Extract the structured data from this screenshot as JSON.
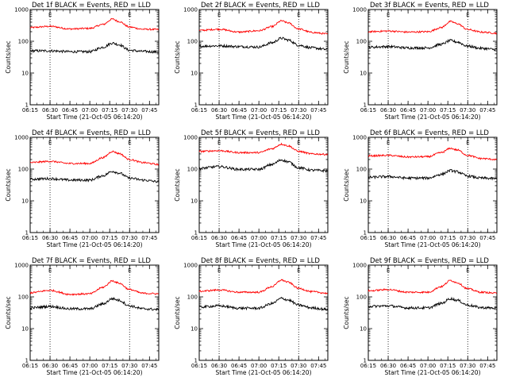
{
  "figure": {
    "time_axis": {
      "start": "06:15",
      "end": "07:52",
      "tick_labels": [
        "06:15",
        "06:30",
        "06:45",
        "07:00",
        "07:15",
        "07:30",
        "07:45"
      ],
      "xlabel": "Start Time (21-Oct-05 06:14:20)",
      "markers": [
        {
          "time": "06:30",
          "label": "E",
          "style": "dotted"
        },
        {
          "time": "07:30",
          "label": "E",
          "style": "dotted"
        }
      ]
    },
    "y_axis": {
      "ylabel": "Counts/sec",
      "scale": "log",
      "ylim": [
        1,
        1000
      ],
      "tick_labels": [
        "1",
        "10",
        "100",
        "1000"
      ]
    },
    "colors": {
      "events": "#000000",
      "lld": "#ff0000"
    }
  },
  "chart_data": [
    {
      "type": "line",
      "title": "Det 1f BLACK = Events, RED = LLD",
      "ylabel": "Counts/sec",
      "xlabel": "Start Time (21-Oct-05 06:14:20)",
      "yscale": "log",
      "ylim": [
        1,
        1000
      ],
      "x": [
        "06:15",
        "06:30",
        "06:45",
        "07:00",
        "07:10",
        "07:17",
        "07:22",
        "07:30",
        "07:40",
        "07:52"
      ],
      "series": [
        {
          "values": [
            270,
            295,
            245,
            255,
            340,
            500,
            420,
            280,
            240,
            235
          ],
          "color": "#ff0000"
        },
        {
          "values": [
            50,
            50,
            47,
            47,
            65,
            88,
            78,
            52,
            48,
            46
          ],
          "color": "#000000"
        }
      ]
    },
    {
      "type": "line",
      "title": "Det 2f BLACK = Events, RED = LLD",
      "ylabel": "Counts/sec",
      "xlabel": "Start Time (21-Oct-05 06:14:20)",
      "yscale": "log",
      "ylim": [
        1,
        1000
      ],
      "x": [
        "06:15",
        "06:30",
        "06:45",
        "07:00",
        "07:10",
        "07:17",
        "07:22",
        "07:30",
        "07:40",
        "07:52"
      ],
      "series": [
        {
          "values": [
            220,
            240,
            195,
            215,
            290,
            440,
            380,
            245,
            190,
            170
          ],
          "color": "#ff0000"
        },
        {
          "values": [
            70,
            72,
            68,
            66,
            90,
            125,
            110,
            75,
            62,
            55
          ],
          "color": "#000000"
        }
      ]
    },
    {
      "type": "line",
      "title": "Det 3f BLACK = Events, RED = LLD",
      "ylabel": "Counts/sec",
      "xlabel": "Start Time (21-Oct-05 06:14:20)",
      "yscale": "log",
      "ylim": [
        1,
        1000
      ],
      "x": [
        "06:15",
        "06:30",
        "06:45",
        "07:00",
        "07:10",
        "07:17",
        "07:22",
        "07:30",
        "07:40",
        "07:52"
      ],
      "series": [
        {
          "values": [
            200,
            210,
            195,
            200,
            270,
            420,
            360,
            235,
            195,
            180
          ],
          "color": "#ff0000"
        },
        {
          "values": [
            65,
            68,
            62,
            62,
            80,
            105,
            95,
            70,
            60,
            55
          ],
          "color": "#000000"
        }
      ]
    },
    {
      "type": "line",
      "title": "Det 4f BLACK = Events, RED = LLD",
      "ylabel": "Counts/sec",
      "xlabel": "Start Time (21-Oct-05 06:14:20)",
      "yscale": "log",
      "ylim": [
        1,
        1000
      ],
      "x": [
        "06:15",
        "06:30",
        "06:45",
        "07:00",
        "07:10",
        "07:17",
        "07:22",
        "07:30",
        "07:40",
        "07:52"
      ],
      "series": [
        {
          "values": [
            160,
            175,
            150,
            150,
            230,
            360,
            310,
            200,
            160,
            140
          ],
          "color": "#ff0000"
        },
        {
          "values": [
            48,
            50,
            45,
            45,
            62,
            85,
            75,
            52,
            45,
            40
          ],
          "color": "#000000"
        }
      ]
    },
    {
      "type": "line",
      "title": "Det 5f BLACK = Events, RED = LLD",
      "ylabel": "Counts/sec",
      "xlabel": "Start Time (21-Oct-05 06:14:20)",
      "yscale": "log",
      "ylim": [
        1,
        1000
      ],
      "x": [
        "06:15",
        "06:30",
        "06:45",
        "07:00",
        "07:10",
        "07:17",
        "07:22",
        "07:30",
        "07:40",
        "07:52"
      ],
      "series": [
        {
          "values": [
            360,
            380,
            330,
            330,
            440,
            610,
            540,
            360,
            300,
            290
          ],
          "color": "#ff0000"
        },
        {
          "values": [
            105,
            120,
            98,
            98,
            140,
            195,
            170,
            110,
            92,
            88
          ],
          "color": "#000000"
        }
      ]
    },
    {
      "type": "line",
      "title": "Det 6f BLACK = Events, RED = LLD",
      "ylabel": "Counts/sec",
      "xlabel": "Start Time (21-Oct-05 06:14:20)",
      "yscale": "log",
      "ylim": [
        1,
        1000
      ],
      "x": [
        "06:15",
        "06:30",
        "06:45",
        "07:00",
        "07:10",
        "07:17",
        "07:22",
        "07:30",
        "07:40",
        "07:52"
      ],
      "series": [
        {
          "values": [
            260,
            270,
            240,
            245,
            330,
            450,
            400,
            270,
            215,
            200
          ],
          "color": "#ff0000"
        },
        {
          "values": [
            55,
            58,
            52,
            52,
            68,
            90,
            82,
            60,
            52,
            50
          ],
          "color": "#000000"
        }
      ]
    },
    {
      "type": "line",
      "title": "Det 7f BLACK = Events, RED = LLD",
      "ylabel": "Counts/sec",
      "xlabel": "Start Time (21-Oct-05 06:14:20)",
      "yscale": "log",
      "ylim": [
        1,
        1000
      ],
      "x": [
        "06:15",
        "06:30",
        "06:45",
        "07:00",
        "07:10",
        "07:17",
        "07:22",
        "07:30",
        "07:40",
        "07:52"
      ],
      "series": [
        {
          "values": [
            135,
            160,
            120,
            125,
            200,
            320,
            270,
            170,
            130,
            125
          ],
          "color": "#ff0000"
        },
        {
          "values": [
            45,
            50,
            42,
            42,
            60,
            88,
            78,
            52,
            42,
            40
          ],
          "color": "#000000"
        }
      ]
    },
    {
      "type": "line",
      "title": "Det 8f BLACK = Events, RED = LLD",
      "ylabel": "Counts/sec",
      "xlabel": "Start Time (21-Oct-05 06:14:20)",
      "yscale": "log",
      "ylim": [
        1,
        1000
      ],
      "x": [
        "06:15",
        "06:30",
        "06:45",
        "07:00",
        "07:10",
        "07:17",
        "07:22",
        "07:30",
        "07:40",
        "07:52"
      ],
      "series": [
        {
          "values": [
            150,
            165,
            140,
            140,
            210,
            340,
            290,
            185,
            145,
            130
          ],
          "color": "#ff0000"
        },
        {
          "values": [
            48,
            52,
            44,
            44,
            62,
            90,
            80,
            55,
            45,
            40
          ],
          "color": "#000000"
        }
      ]
    },
    {
      "type": "line",
      "title": "Det 9f BLACK = Events, RED = LLD",
      "ylabel": "Counts/sec",
      "xlabel": "Start Time (21-Oct-05 06:14:20)",
      "yscale": "log",
      "ylim": [
        1,
        1000
      ],
      "x": [
        "06:15",
        "06:30",
        "06:45",
        "07:00",
        "07:10",
        "07:17",
        "07:22",
        "07:30",
        "07:40",
        "07:52"
      ],
      "series": [
        {
          "values": [
            155,
            170,
            140,
            140,
            210,
            330,
            280,
            180,
            140,
            130
          ],
          "color": "#ff0000"
        },
        {
          "values": [
            50,
            52,
            45,
            45,
            62,
            88,
            78,
            55,
            46,
            44
          ],
          "color": "#000000"
        }
      ]
    }
  ]
}
